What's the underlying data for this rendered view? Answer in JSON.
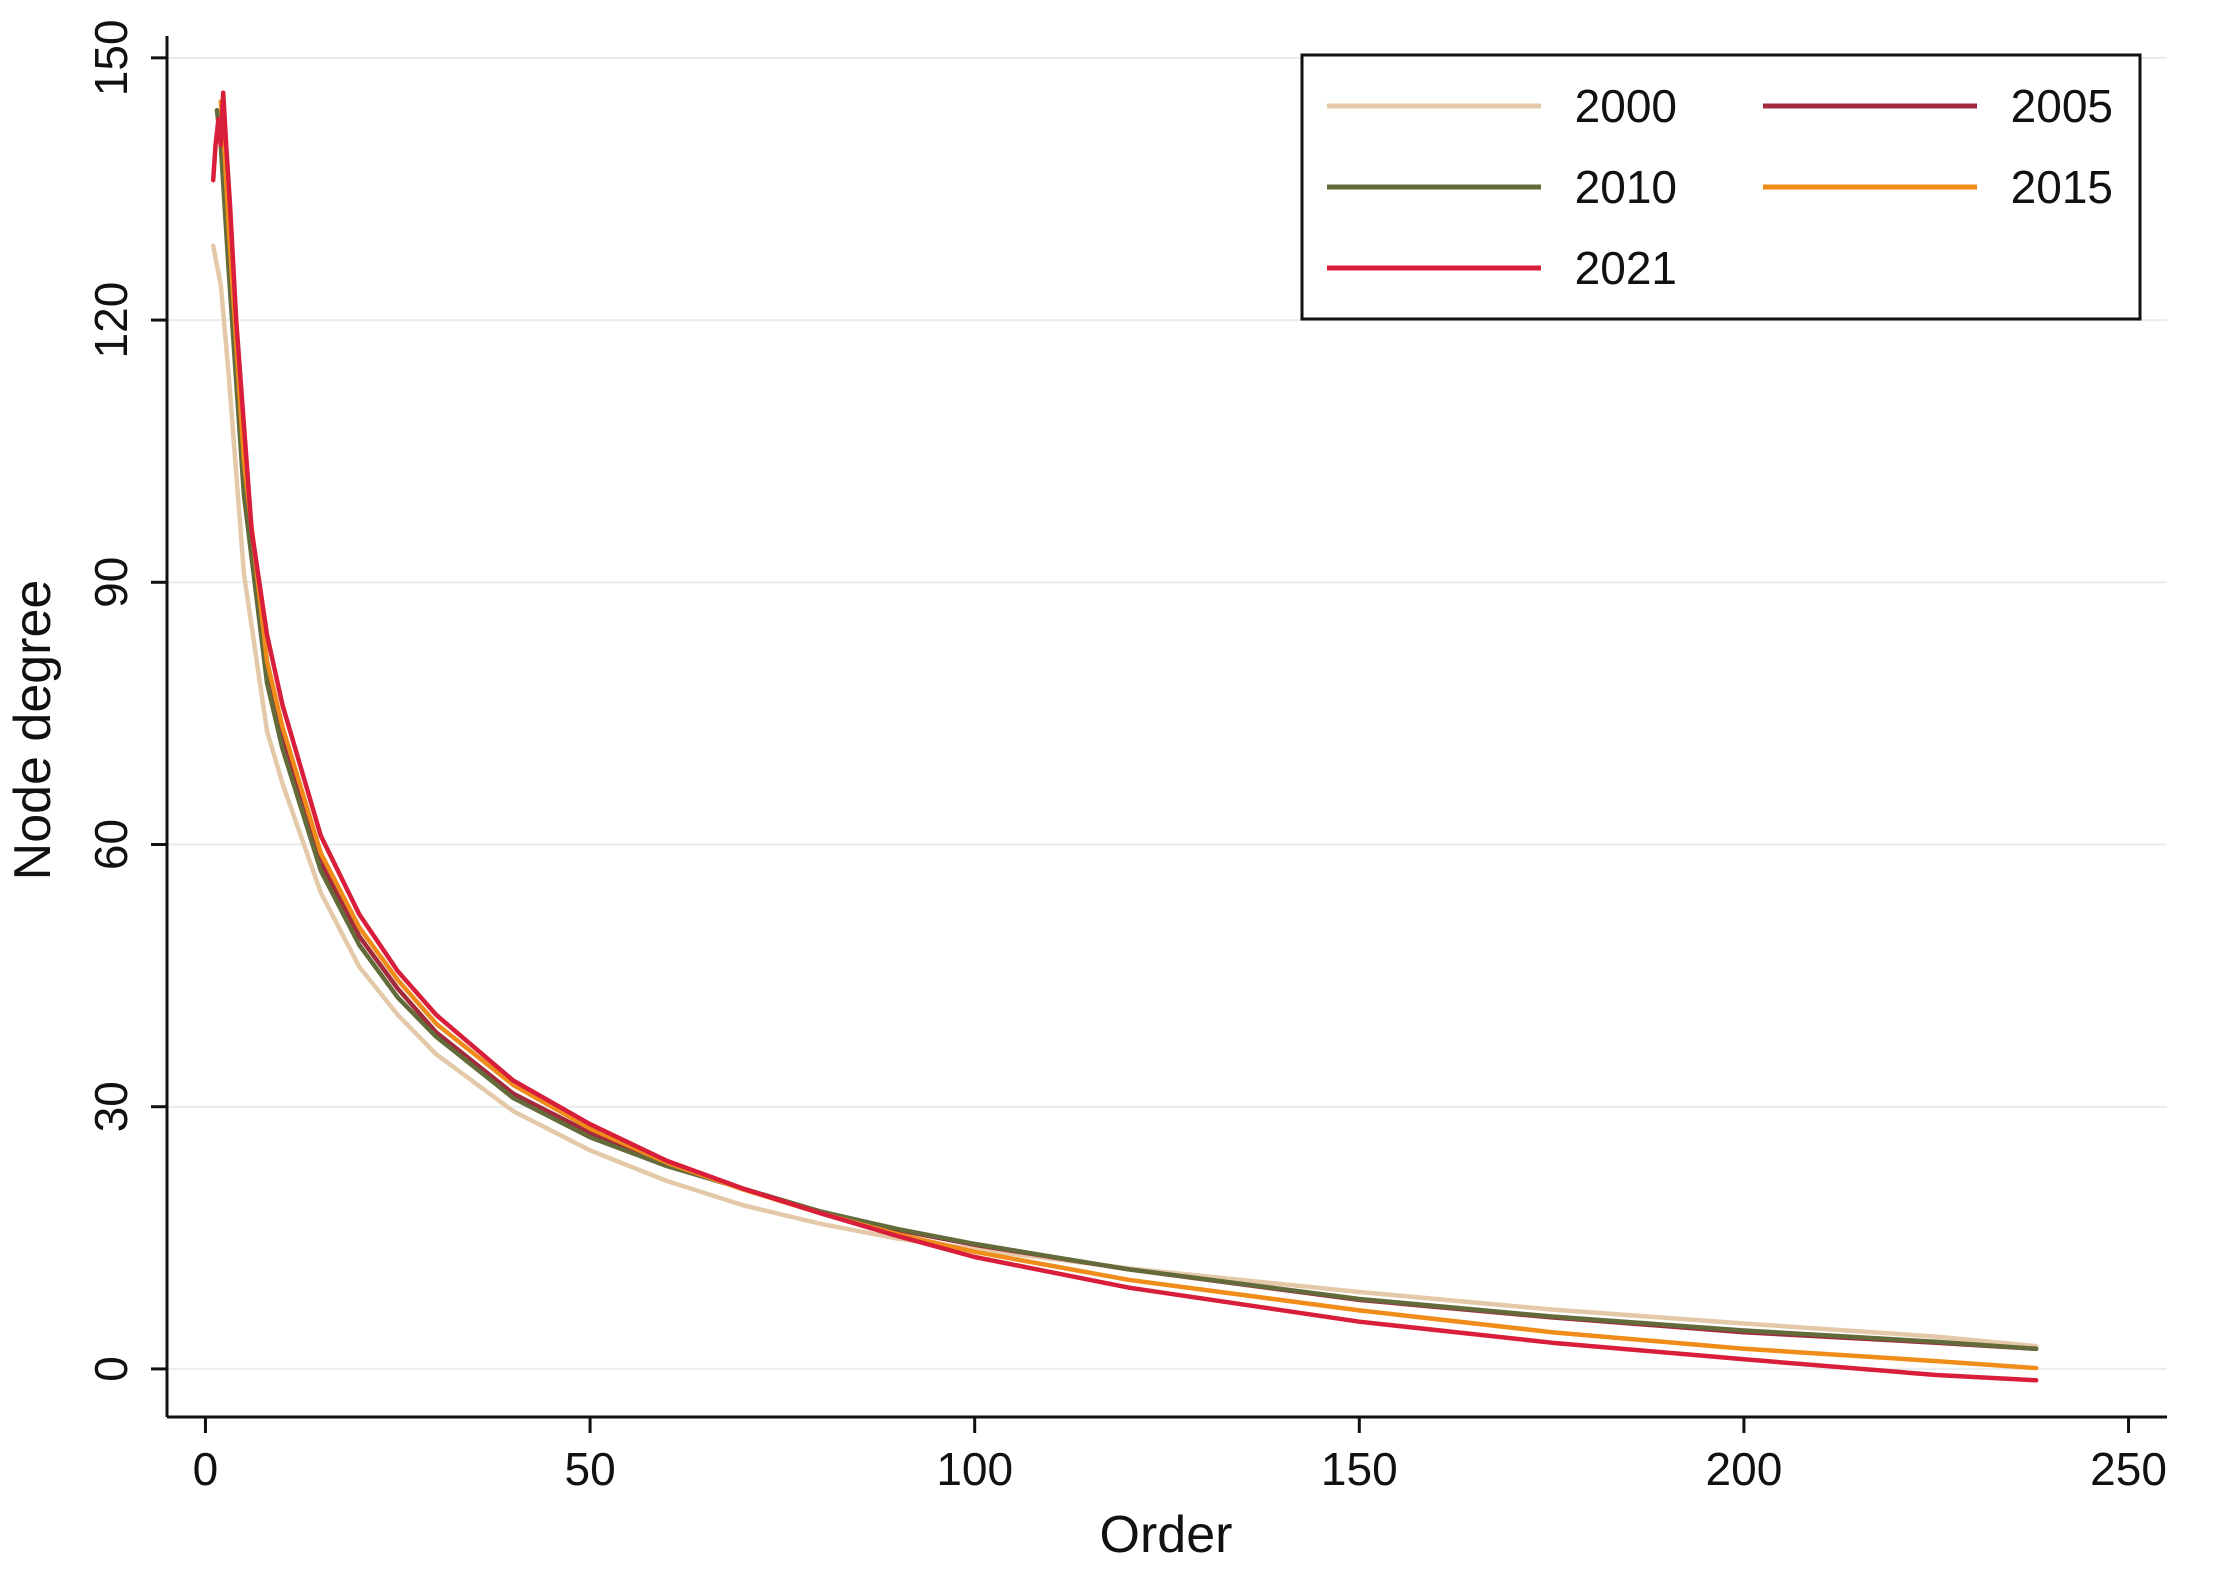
{
  "chart_data": {
    "type": "line",
    "title": "",
    "xlabel": "Order",
    "ylabel": "Node degree",
    "xlim": [
      -5,
      255
    ],
    "ylim": [
      -5.5,
      152.5
    ],
    "x_ticks": [
      0,
      50,
      100,
      150,
      200,
      250
    ],
    "y_ticks": [
      0,
      30,
      60,
      90,
      120,
      150
    ],
    "grid": true,
    "legend_position": "top-right",
    "series": [
      {
        "name": "2000",
        "color": "#e3c9a8",
        "x": [
          1,
          2,
          3,
          5,
          8,
          10,
          15,
          20,
          25,
          30,
          40,
          50,
          60,
          70,
          80,
          90,
          100,
          120,
          150,
          175,
          200,
          225,
          238
        ],
        "y": [
          128.5,
          124,
          114,
          91,
          73,
          67,
          54.5,
          46,
          40.5,
          36,
          29.5,
          25,
          21.5,
          18.7,
          16.6,
          14.9,
          13.7,
          11.5,
          8.8,
          6.8,
          5.2,
          3.7,
          2.6
        ]
      },
      {
        "name": "2005",
        "color": "#a3293d",
        "x": [
          1.5,
          2,
          3,
          5,
          8,
          10,
          15,
          20,
          25,
          30,
          40,
          50,
          60,
          70,
          80,
          90,
          100,
          120,
          150,
          175,
          200,
          225,
          238
        ],
        "y": [
          144,
          141,
          128,
          101,
          79,
          72,
          58,
          49.5,
          43.5,
          38.5,
          31.5,
          27,
          23.4,
          20.6,
          18,
          15.9,
          14.2,
          11.4,
          7.9,
          5.9,
          4.2,
          3,
          2.3
        ]
      },
      {
        "name": "2010",
        "color": "#636b3a",
        "x": [
          1.5,
          2,
          3,
          5,
          8,
          10,
          15,
          20,
          25,
          30,
          40,
          50,
          60,
          70,
          80,
          90,
          100,
          120,
          150,
          175,
          200,
          225,
          238
        ],
        "y": [
          144,
          140,
          126,
          100,
          78.5,
          71,
          57,
          48.5,
          42.5,
          38,
          31,
          26.5,
          23.2,
          20.6,
          18,
          16,
          14.3,
          11.4,
          8,
          6,
          4.4,
          3.1,
          2.3
        ]
      },
      {
        "name": "2015",
        "color": "#f08c19",
        "x": [
          2,
          2.5,
          3,
          5,
          8,
          10,
          15,
          20,
          25,
          30,
          40,
          50,
          60,
          70,
          80,
          90,
          100,
          120,
          150,
          175,
          200,
          225,
          238
        ],
        "y": [
          145,
          139,
          131,
          104,
          81,
          73.5,
          59,
          50.5,
          44.5,
          39.5,
          32.5,
          27.5,
          23.6,
          20.5,
          17.8,
          15.4,
          13.4,
          10.2,
          6.7,
          4.2,
          2.3,
          0.9,
          0.1
        ]
      },
      {
        "name": "2021",
        "color": "#d81e3a",
        "x": [
          1,
          1.3,
          1.7,
          2,
          2.3,
          2.7,
          3.2,
          4,
          6,
          8,
          10,
          15,
          20,
          25,
          30,
          40,
          50,
          60,
          70,
          80,
          90,
          100,
          120,
          150,
          175,
          200,
          225,
          238
        ],
        "y": [
          136,
          140,
          143,
          140,
          146,
          140,
          133,
          120,
          96,
          84,
          76,
          61,
          52,
          45.5,
          40.5,
          33,
          28,
          23.8,
          20.6,
          17.8,
          15.2,
          12.8,
          9.3,
          5.4,
          3,
          1.1,
          -0.7,
          -1.3
        ]
      }
    ]
  }
}
